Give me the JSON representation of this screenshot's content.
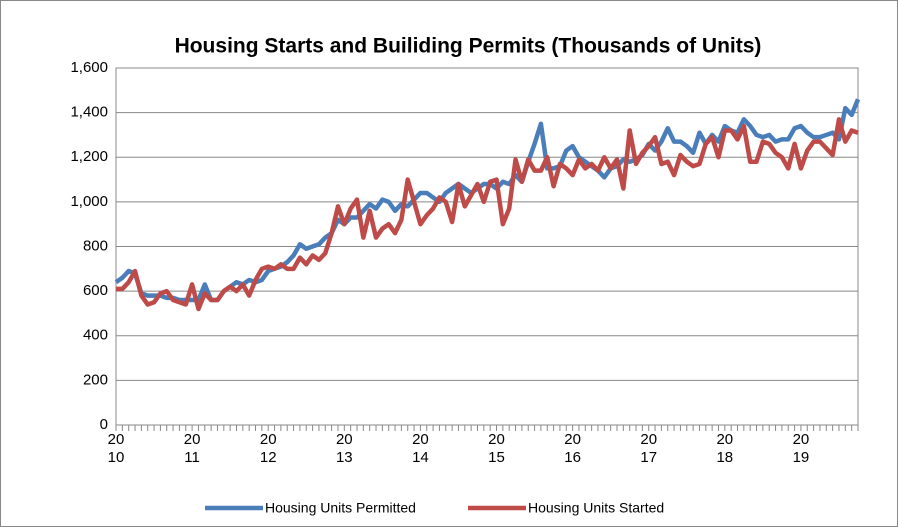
{
  "chart_data": {
    "type": "line",
    "title": "Housing Starts and Builiding Permits (Thousands of Units)",
    "categories": [
      "2010",
      null,
      null,
      null,
      null,
      null,
      null,
      null,
      null,
      null,
      null,
      null,
      "2011",
      null,
      null,
      null,
      null,
      null,
      null,
      null,
      null,
      null,
      null,
      null,
      "2012",
      null,
      null,
      null,
      null,
      null,
      null,
      null,
      null,
      null,
      null,
      null,
      "2013",
      null,
      null,
      null,
      null,
      null,
      null,
      null,
      null,
      null,
      null,
      null,
      "2014",
      null,
      null,
      null,
      null,
      null,
      null,
      null,
      null,
      null,
      null,
      null,
      "2015",
      null,
      null,
      null,
      null,
      null,
      null,
      null,
      null,
      null,
      null,
      null,
      "2016",
      null,
      null,
      null,
      null,
      null,
      null,
      null,
      null,
      null,
      null,
      null,
      "2017",
      null,
      null,
      null,
      null,
      null,
      null,
      null,
      null,
      null,
      null,
      null,
      "2018",
      null,
      null,
      null,
      null,
      null,
      null,
      null,
      null,
      null,
      null,
      null,
      "2019",
      null,
      null,
      null,
      null,
      null,
      null,
      null,
      null,
      null
    ],
    "series": [
      {
        "name": "Housing Units Permitted",
        "color": "#4a7ebb",
        "values": [
          640,
          660,
          690,
          680,
          590,
          580,
          580,
          580,
          570,
          570,
          560,
          560,
          560,
          560,
          630,
          560,
          560,
          600,
          620,
          640,
          630,
          650,
          640,
          650,
          690,
          700,
          710,
          730,
          760,
          810,
          790,
          800,
          810,
          840,
          860,
          920,
          900,
          930,
          930,
          960,
          990,
          970,
          1010,
          1000,
          960,
          990,
          980,
          1010,
          1040,
          1040,
          1020,
          1000,
          1040,
          1060,
          1080,
          1060,
          1040,
          1060,
          1080,
          1080,
          1060,
          1090,
          1080,
          1120,
          1090,
          1180,
          1260,
          1350,
          1150,
          1150,
          1160,
          1230,
          1250,
          1200,
          1180,
          1160,
          1140,
          1110,
          1150,
          1160,
          1190,
          1180,
          1190,
          1210,
          1260,
          1230,
          1270,
          1330,
          1270,
          1270,
          1250,
          1220,
          1310,
          1260,
          1300,
          1270,
          1340,
          1320,
          1310,
          1370,
          1340,
          1300,
          1290,
          1300,
          1270,
          1280,
          1280,
          1330,
          1340,
          1310,
          1290,
          1290,
          1300,
          1310,
          1280,
          1420,
          1390,
          1460
        ]
      },
      {
        "name": "Housing Units Started",
        "color": "#be4b48",
        "values": [
          610,
          610,
          640,
          690,
          580,
          540,
          550,
          590,
          600,
          560,
          550,
          540,
          630,
          520,
          590,
          560,
          560,
          600,
          620,
          600,
          630,
          580,
          650,
          700,
          710,
          700,
          720,
          700,
          700,
          750,
          720,
          760,
          740,
          770,
          860,
          980,
          900,
          970,
          1010,
          840,
          960,
          840,
          880,
          900,
          860,
          920,
          1100,
          1000,
          900,
          940,
          970,
          1020,
          1000,
          910,
          1080,
          980,
          1030,
          1080,
          1000,
          1090,
          1100,
          900,
          970,
          1190,
          1090,
          1190,
          1140,
          1140,
          1200,
          1070,
          1170,
          1150,
          1120,
          1190,
          1150,
          1170,
          1140,
          1200,
          1150,
          1190,
          1060,
          1320,
          1170,
          1220,
          1250,
          1290,
          1170,
          1180,
          1120,
          1210,
          1180,
          1160,
          1170,
          1260,
          1290,
          1200,
          1320,
          1320,
          1280,
          1340,
          1180,
          1180,
          1270,
          1260,
          1220,
          1200,
          1150,
          1260,
          1150,
          1230,
          1270,
          1270,
          1240,
          1210,
          1370,
          1270,
          1320,
          1310
        ]
      }
    ],
    "ylim": [
      0,
      1600
    ],
    "yticks": [
      0,
      200,
      400,
      600,
      800,
      {
        "value": 1000,
        "label": "1,000"
      },
      {
        "value": 1200,
        "label": "1,200"
      },
      {
        "value": 1400,
        "label": "1,400"
      },
      {
        "value": 1600,
        "label": "1,600"
      }
    ],
    "grid": true,
    "legend": "bottom"
  }
}
